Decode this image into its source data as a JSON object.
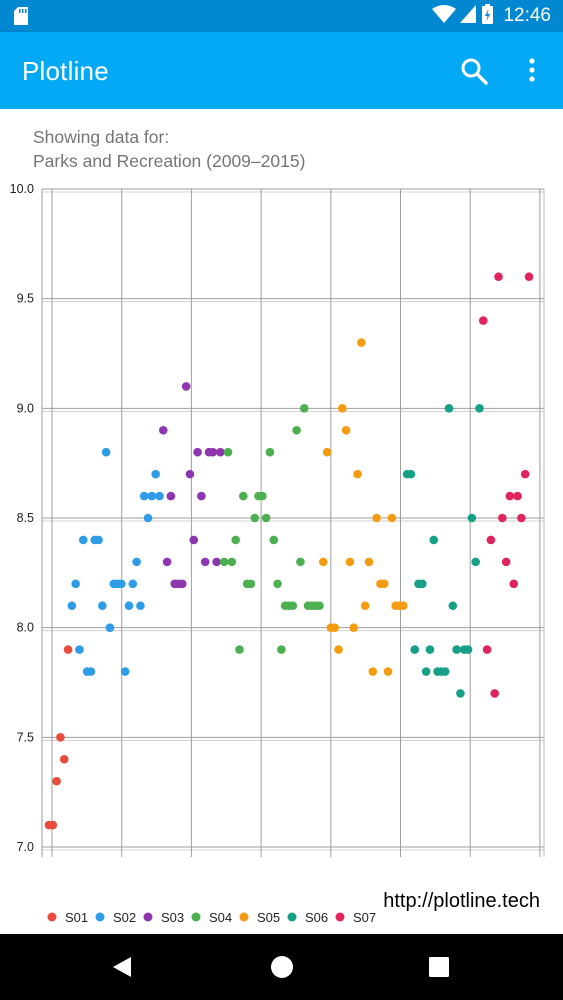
{
  "status_bar": {
    "time": "12:46",
    "icons": [
      "sd-card-icon",
      "wifi-icon",
      "signal-icon",
      "battery-charging-icon"
    ]
  },
  "app_bar": {
    "title": "Plotline",
    "actions": [
      "search-icon",
      "more-vert-icon"
    ]
  },
  "caption": {
    "line1": "Showing data for:",
    "line2": "Parks and Recreation (2009–2015)"
  },
  "watermark": "http://plotline.tech",
  "chart_data": {
    "type": "scatter",
    "ylim": [
      7.0,
      10.0
    ],
    "yticks": [
      "7.0",
      "7.5",
      "8.0",
      "8.5",
      "9.0",
      "9.5",
      "10.0"
    ],
    "grid": true,
    "legend_position": "bottom-left",
    "series": [
      {
        "name": "S01",
        "color": "#e74c3c",
        "x": [
          1,
          2,
          3,
          4,
          5,
          6
        ],
        "y": [
          7.1,
          7.1,
          7.3,
          7.5,
          7.4,
          7.9
        ]
      },
      {
        "name": "S02",
        "color": "#2e9ce6",
        "x": [
          7,
          8,
          9,
          10,
          11,
          12,
          13,
          14,
          15,
          16,
          17,
          18,
          19,
          20,
          21,
          22,
          23,
          24,
          25,
          26,
          27,
          28,
          29,
          30
        ],
        "y": [
          8.1,
          8.2,
          7.9,
          8.4,
          7.8,
          7.8,
          8.4,
          8.4,
          8.1,
          8.8,
          8.0,
          8.2,
          8.2,
          8.2,
          7.8,
          8.1,
          8.2,
          8.3,
          8.1,
          8.6,
          8.5,
          8.6,
          8.7,
          8.6
        ]
      },
      {
        "name": "S03",
        "color": "#8e36b0",
        "x": [
          31,
          32,
          33,
          34,
          35,
          36,
          37,
          38,
          39,
          40,
          41,
          42,
          43,
          44,
          45,
          46
        ],
        "y": [
          8.9,
          8.3,
          8.6,
          8.2,
          8.2,
          8.2,
          9.1,
          8.7,
          8.4,
          8.8,
          8.6,
          8.3,
          8.8,
          8.8,
          8.3,
          8.8
        ]
      },
      {
        "name": "S04",
        "color": "#4caf50",
        "x": [
          47,
          48,
          49,
          50,
          51,
          52,
          53,
          54,
          55,
          56,
          57,
          58,
          59,
          60,
          61,
          62,
          63,
          64,
          65,
          66,
          67,
          68,
          69,
          70,
          71,
          72
        ],
        "y": [
          8.3,
          8.8,
          8.3,
          8.4,
          7.9,
          8.6,
          8.2,
          8.2,
          8.5,
          8.6,
          8.6,
          8.5,
          8.8,
          8.4,
          8.2,
          7.9,
          8.1,
          8.1,
          8.1,
          8.9,
          8.3,
          9.0,
          8.1,
          8.1,
          8.1,
          8.1
        ]
      },
      {
        "name": "S05",
        "color": "#f39c12",
        "x": [
          73,
          74,
          75,
          76,
          77,
          78,
          79,
          80,
          81,
          82,
          83,
          84,
          85,
          86,
          87,
          88,
          89,
          90,
          91,
          92,
          93,
          94
        ],
        "y": [
          8.3,
          8.8,
          8.0,
          8.0,
          7.9,
          9.0,
          8.9,
          8.3,
          8.0,
          8.7,
          9.3,
          8.1,
          8.3,
          7.8,
          8.5,
          8.2,
          8.2,
          7.8,
          8.5,
          8.1,
          8.1,
          8.1
        ]
      },
      {
        "name": "S06",
        "color": "#16a085",
        "x": [
          95,
          96,
          97,
          98,
          99,
          100,
          101,
          102,
          103,
          104,
          105,
          106,
          107,
          108,
          109,
          110,
          111,
          112,
          113,
          114
        ],
        "y": [
          8.7,
          8.7,
          7.9,
          8.2,
          8.2,
          7.8,
          7.9,
          8.4,
          7.8,
          7.8,
          7.8,
          9.0,
          8.1,
          7.9,
          7.7,
          7.9,
          7.9,
          8.5,
          8.3,
          9.0
        ]
      },
      {
        "name": "S07",
        "color": "#e0245e",
        "x": [
          115,
          116,
          117,
          118,
          119,
          120,
          121,
          122,
          123,
          124,
          125,
          126,
          127
        ],
        "y": [
          9.4,
          7.9,
          8.4,
          7.7,
          9.6,
          8.5,
          8.3,
          8.6,
          8.2,
          8.6,
          8.5,
          8.7,
          9.6
        ]
      }
    ]
  }
}
